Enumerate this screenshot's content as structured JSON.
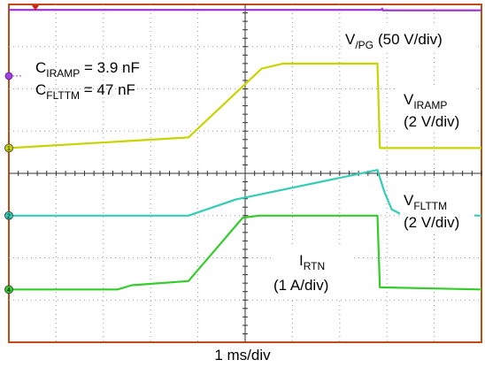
{
  "chart_data": {
    "type": "line",
    "x_units": "div",
    "y_units": "div",
    "xlim": [
      0,
      10
    ],
    "ylim": [
      0,
      8
    ],
    "grid": true,
    "xlabel": "1 ms/div",
    "annotation": {
      "c_iramp": {
        "main": "C",
        "sub": "IRAMP",
        "rest": " = 3.9 nF"
      },
      "c_flttm": {
        "main": "C",
        "sub": "FLTTM",
        "rest": " = 47 nF"
      }
    },
    "series": [
      {
        "key": "vpg",
        "label_main": "V",
        "label_sub": "/PG",
        "label_scale": "(50 V/div)",
        "channel": "",
        "color": "#9b2fd1",
        "points": [
          [
            0,
            7.87
          ],
          [
            7.88,
            7.87
          ],
          [
            7.9,
            7.9
          ],
          [
            7.92,
            7.86
          ],
          [
            10,
            7.86
          ]
        ]
      },
      {
        "key": "viramp",
        "label_main": "V",
        "label_sub": "IRAMP",
        "label_scale": "(2 V/div)",
        "channel": "1",
        "color": "#c8d400",
        "points": [
          [
            0,
            4.6
          ],
          [
            3.8,
            4.85
          ],
          [
            5.35,
            6.48
          ],
          [
            5.8,
            6.6
          ],
          [
            7.8,
            6.6
          ],
          [
            7.85,
            4.6
          ],
          [
            10,
            4.6
          ]
        ]
      },
      {
        "key": "vflttm",
        "label_main": "V",
        "label_sub": "FLTTM",
        "label_scale": "(2 V/div)",
        "channel": "2",
        "color": "#33ccb4",
        "points": [
          [
            0,
            3.0
          ],
          [
            3.8,
            3.0
          ],
          [
            4.8,
            3.38
          ],
          [
            7.8,
            4.08
          ],
          [
            7.95,
            3.55
          ],
          [
            8.1,
            3.15
          ],
          [
            8.3,
            3.03
          ],
          [
            10,
            3.0
          ]
        ]
      },
      {
        "key": "irtn",
        "label_main": "I",
        "label_sub": "RTN",
        "label_scale": "(1 A/div)",
        "channel": "4",
        "color": "#33cc2a",
        "points": [
          [
            0,
            1.25
          ],
          [
            2.3,
            1.25
          ],
          [
            2.6,
            1.35
          ],
          [
            3.8,
            1.45
          ],
          [
            4.95,
            2.95
          ],
          [
            5.3,
            3.0
          ],
          [
            7.8,
            3.0
          ],
          [
            7.85,
            1.3
          ],
          [
            10,
            1.25
          ]
        ]
      }
    ]
  }
}
